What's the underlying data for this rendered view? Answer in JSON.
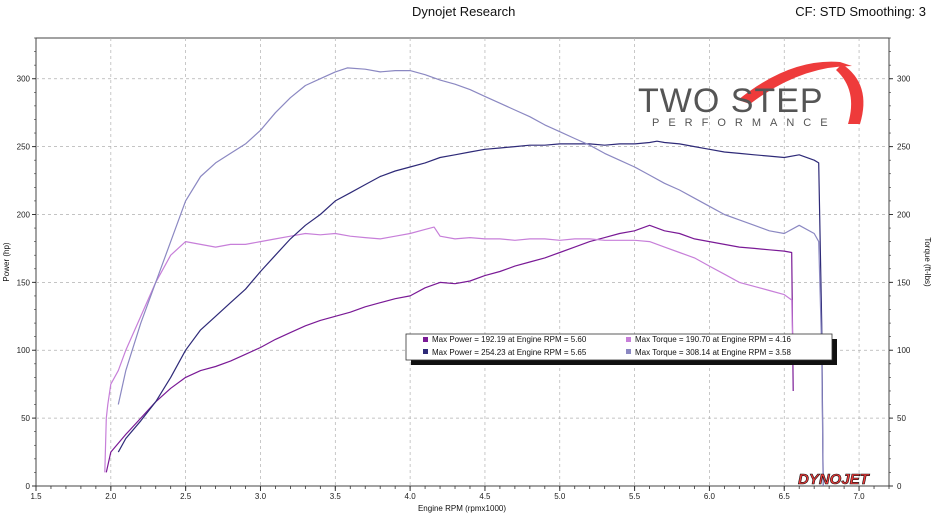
{
  "header": {
    "title": "Dynojet Research",
    "cf": "CF: STD Smoothing: 3"
  },
  "logo": {
    "main": "TWO STEP",
    "sub": "PERFORMANCE",
    "brand": "DYNOJET"
  },
  "colors": {
    "run1_power": "#7a1a96",
    "run1_torque": "#c77fd9",
    "run2_power": "#2e2a78",
    "run2_torque": "#8b88c2",
    "logo_red": "#ee3b3b",
    "logo_gray": "#555555"
  },
  "chart_data": {
    "type": "line",
    "xlabel": "Engine RPM (rpmx1000)",
    "ylabel_left": "Power (hp)",
    "ylabel_right": "Torque (ft-lbs)",
    "xlim": [
      1.5,
      7.2
    ],
    "ylim_left": [
      0,
      330
    ],
    "ylim_right": [
      0,
      330
    ],
    "x_ticks": [
      "1.5",
      "2.0",
      "2.5",
      "3.0",
      "3.5",
      "4.0",
      "4.5",
      "5.0",
      "5.5",
      "6.0",
      "6.5",
      "7.0"
    ],
    "y_ticks": [
      "0",
      "50",
      "100",
      "150",
      "200",
      "250",
      "300"
    ],
    "grid": true,
    "legend_position": "center-right",
    "legend": [
      {
        "text": "Max Power = 192.19 at Engine RPM = 5.60",
        "series": "run1_power"
      },
      {
        "text": "Max Torque = 190.70 at Engine RPM = 4.16",
        "series": "run1_torque"
      },
      {
        "text": "Max Power = 254.23 at Engine RPM = 5.65",
        "series": "run2_power"
      },
      {
        "text": "Max Torque = 308.14 at Engine RPM = 3.58",
        "series": "run2_torque"
      }
    ],
    "series": [
      {
        "id": "run1_power",
        "axis": "left",
        "points": [
          [
            1.97,
            10
          ],
          [
            2.0,
            25
          ],
          [
            2.1,
            38
          ],
          [
            2.2,
            50
          ],
          [
            2.3,
            62
          ],
          [
            2.4,
            72
          ],
          [
            2.5,
            80
          ],
          [
            2.6,
            85
          ],
          [
            2.7,
            88
          ],
          [
            2.8,
            92
          ],
          [
            2.9,
            97
          ],
          [
            3.0,
            102
          ],
          [
            3.1,
            108
          ],
          [
            3.2,
            113
          ],
          [
            3.3,
            118
          ],
          [
            3.4,
            122
          ],
          [
            3.5,
            125
          ],
          [
            3.6,
            128
          ],
          [
            3.7,
            132
          ],
          [
            3.8,
            135
          ],
          [
            3.9,
            138
          ],
          [
            4.0,
            140
          ],
          [
            4.1,
            146
          ],
          [
            4.2,
            150
          ],
          [
            4.3,
            149
          ],
          [
            4.4,
            151
          ],
          [
            4.5,
            155
          ],
          [
            4.6,
            158
          ],
          [
            4.7,
            162
          ],
          [
            4.8,
            165
          ],
          [
            4.9,
            168
          ],
          [
            5.0,
            172
          ],
          [
            5.1,
            176
          ],
          [
            5.2,
            180
          ],
          [
            5.3,
            183
          ],
          [
            5.4,
            186
          ],
          [
            5.5,
            188
          ],
          [
            5.6,
            192
          ],
          [
            5.7,
            188
          ],
          [
            5.8,
            186
          ],
          [
            5.9,
            182
          ],
          [
            6.0,
            180
          ],
          [
            6.1,
            178
          ],
          [
            6.2,
            176
          ],
          [
            6.3,
            175
          ],
          [
            6.4,
            174
          ],
          [
            6.5,
            173
          ],
          [
            6.55,
            172
          ],
          [
            6.56,
            70
          ]
        ]
      },
      {
        "id": "run1_torque",
        "axis": "right",
        "points": [
          [
            1.96,
            10
          ],
          [
            1.97,
            50
          ],
          [
            1.98,
            60
          ],
          [
            2.0,
            75
          ],
          [
            2.05,
            85
          ],
          [
            2.1,
            100
          ],
          [
            2.2,
            125
          ],
          [
            2.3,
            150
          ],
          [
            2.4,
            170
          ],
          [
            2.5,
            180
          ],
          [
            2.6,
            178
          ],
          [
            2.7,
            176
          ],
          [
            2.8,
            178
          ],
          [
            2.9,
            178
          ],
          [
            3.0,
            180
          ],
          [
            3.1,
            182
          ],
          [
            3.2,
            184
          ],
          [
            3.3,
            186
          ],
          [
            3.4,
            185
          ],
          [
            3.5,
            186
          ],
          [
            3.6,
            184
          ],
          [
            3.7,
            183
          ],
          [
            3.8,
            182
          ],
          [
            3.9,
            184
          ],
          [
            4.0,
            186
          ],
          [
            4.1,
            189
          ],
          [
            4.16,
            190.7
          ],
          [
            4.2,
            184
          ],
          [
            4.3,
            182
          ],
          [
            4.4,
            183
          ],
          [
            4.5,
            182
          ],
          [
            4.6,
            182
          ],
          [
            4.7,
            181
          ],
          [
            4.8,
            182
          ],
          [
            4.9,
            182
          ],
          [
            5.0,
            181
          ],
          [
            5.1,
            182
          ],
          [
            5.2,
            182
          ],
          [
            5.3,
            181
          ],
          [
            5.4,
            181
          ],
          [
            5.5,
            181
          ],
          [
            5.6,
            180
          ],
          [
            5.7,
            176
          ],
          [
            5.8,
            172
          ],
          [
            5.9,
            168
          ],
          [
            6.0,
            162
          ],
          [
            6.1,
            156
          ],
          [
            6.2,
            150
          ],
          [
            6.3,
            147
          ],
          [
            6.4,
            144
          ],
          [
            6.5,
            141
          ],
          [
            6.55,
            137
          ],
          [
            6.56,
            90
          ]
        ]
      },
      {
        "id": "run2_power",
        "axis": "left",
        "points": [
          [
            2.05,
            25
          ],
          [
            2.1,
            35
          ],
          [
            2.2,
            48
          ],
          [
            2.3,
            62
          ],
          [
            2.4,
            80
          ],
          [
            2.5,
            100
          ],
          [
            2.6,
            115
          ],
          [
            2.7,
            125
          ],
          [
            2.8,
            135
          ],
          [
            2.9,
            145
          ],
          [
            3.0,
            158
          ],
          [
            3.1,
            170
          ],
          [
            3.2,
            182
          ],
          [
            3.3,
            192
          ],
          [
            3.4,
            200
          ],
          [
            3.5,
            210
          ],
          [
            3.6,
            216
          ],
          [
            3.7,
            222
          ],
          [
            3.8,
            228
          ],
          [
            3.9,
            232
          ],
          [
            4.0,
            235
          ],
          [
            4.1,
            238
          ],
          [
            4.2,
            242
          ],
          [
            4.3,
            244
          ],
          [
            4.4,
            246
          ],
          [
            4.5,
            248
          ],
          [
            4.6,
            249
          ],
          [
            4.7,
            250
          ],
          [
            4.8,
            251
          ],
          [
            4.9,
            251
          ],
          [
            5.0,
            252
          ],
          [
            5.1,
            252
          ],
          [
            5.2,
            252
          ],
          [
            5.3,
            251
          ],
          [
            5.4,
            252
          ],
          [
            5.5,
            252
          ],
          [
            5.6,
            253
          ],
          [
            5.65,
            254
          ],
          [
            5.7,
            253
          ],
          [
            5.8,
            252
          ],
          [
            5.9,
            250
          ],
          [
            6.0,
            248
          ],
          [
            6.1,
            246
          ],
          [
            6.2,
            245
          ],
          [
            6.3,
            244
          ],
          [
            6.4,
            243
          ],
          [
            6.5,
            242
          ],
          [
            6.6,
            244
          ],
          [
            6.7,
            240
          ],
          [
            6.73,
            238
          ],
          [
            6.75,
            120
          ],
          [
            6.76,
            0
          ]
        ]
      },
      {
        "id": "run2_torque",
        "axis": "right",
        "points": [
          [
            2.05,
            60
          ],
          [
            2.1,
            85
          ],
          [
            2.2,
            120
          ],
          [
            2.3,
            150
          ],
          [
            2.4,
            180
          ],
          [
            2.5,
            210
          ],
          [
            2.6,
            228
          ],
          [
            2.7,
            238
          ],
          [
            2.8,
            245
          ],
          [
            2.9,
            252
          ],
          [
            3.0,
            262
          ],
          [
            3.1,
            275
          ],
          [
            3.2,
            286
          ],
          [
            3.3,
            295
          ],
          [
            3.4,
            300
          ],
          [
            3.5,
            305
          ],
          [
            3.58,
            308
          ],
          [
            3.7,
            307
          ],
          [
            3.8,
            305
          ],
          [
            3.9,
            306
          ],
          [
            4.0,
            306
          ],
          [
            4.1,
            303
          ],
          [
            4.2,
            299
          ],
          [
            4.3,
            296
          ],
          [
            4.4,
            292
          ],
          [
            4.5,
            287
          ],
          [
            4.6,
            282
          ],
          [
            4.7,
            277
          ],
          [
            4.8,
            272
          ],
          [
            4.9,
            266
          ],
          [
            5.0,
            261
          ],
          [
            5.1,
            256
          ],
          [
            5.2,
            251
          ],
          [
            5.3,
            245
          ],
          [
            5.4,
            240
          ],
          [
            5.5,
            235
          ],
          [
            5.6,
            229
          ],
          [
            5.7,
            223
          ],
          [
            5.8,
            218
          ],
          [
            5.9,
            212
          ],
          [
            6.0,
            206
          ],
          [
            6.1,
            200
          ],
          [
            6.2,
            196
          ],
          [
            6.3,
            192
          ],
          [
            6.4,
            188
          ],
          [
            6.5,
            186
          ],
          [
            6.6,
            192
          ],
          [
            6.7,
            186
          ],
          [
            6.73,
            180
          ],
          [
            6.75,
            100
          ],
          [
            6.76,
            0
          ]
        ]
      }
    ]
  }
}
